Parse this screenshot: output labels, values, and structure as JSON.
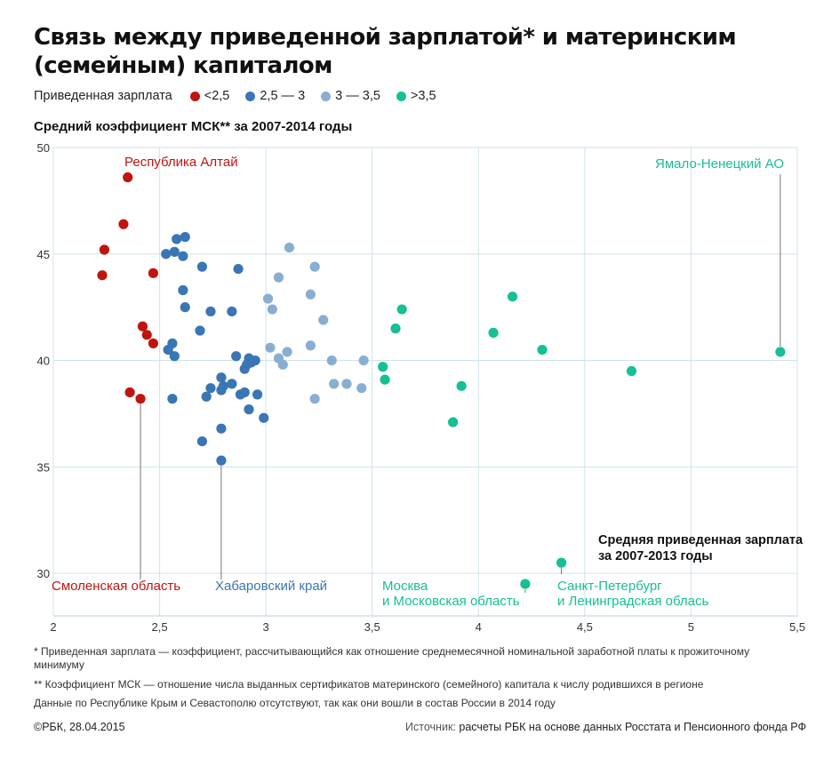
{
  "header": {
    "title_line1": "Связь между приведенной зарплатой* и материнским",
    "title_line2": "(семейным) капиталом",
    "subtitle": "Средний коэффициент МСК** за 2007-2014 годы"
  },
  "legend": {
    "title": "Приведенная зарплата",
    "items": [
      {
        "label": "<2,5",
        "color": "#c0150f"
      },
      {
        "label": "2,5 — 3",
        "color": "#3a76b4"
      },
      {
        "label": "3 — 3,5",
        "color": "#8aaed2"
      },
      {
        "label": ">3,5",
        "color": "#17bf94"
      }
    ]
  },
  "chart_data": {
    "type": "scatter",
    "xlabel": "Средняя приведенная зарплата за 2007-2013 годы",
    "xlim": [
      2,
      5.5
    ],
    "ylim": [
      28,
      50
    ],
    "x_ticks": [
      2,
      2.5,
      3,
      3.5,
      4,
      4.5,
      5,
      5.5
    ],
    "x_tick_labels": [
      "2",
      "2,5",
      "3",
      "3,5",
      "4",
      "4,5",
      "5",
      "5,5"
    ],
    "y_ticks": [
      30,
      35,
      40,
      45,
      50
    ],
    "y_tick_labels": [
      "30",
      "35",
      "40",
      "45",
      "50"
    ],
    "grid": true,
    "series": [
      {
        "name": "<2,5",
        "color": "#c0150f",
        "points": [
          [
            2.35,
            48.6
          ],
          [
            2.33,
            46.4
          ],
          [
            2.24,
            45.2
          ],
          [
            2.23,
            44.0
          ],
          [
            2.47,
            44.1
          ],
          [
            2.42,
            41.6
          ],
          [
            2.44,
            41.2
          ],
          [
            2.47,
            40.8
          ],
          [
            2.36,
            38.5
          ],
          [
            2.41,
            38.2
          ]
        ]
      },
      {
        "name": "2,5 — 3",
        "color": "#3a76b4",
        "points": [
          [
            2.62,
            45.8
          ],
          [
            2.58,
            45.7
          ],
          [
            2.53,
            45.0
          ],
          [
            2.57,
            45.1
          ],
          [
            2.61,
            44.9
          ],
          [
            2.7,
            44.4
          ],
          [
            2.87,
            44.3
          ],
          [
            2.61,
            43.3
          ],
          [
            2.62,
            42.5
          ],
          [
            2.74,
            42.3
          ],
          [
            2.84,
            42.3
          ],
          [
            2.69,
            41.4
          ],
          [
            2.56,
            40.8
          ],
          [
            2.54,
            40.5
          ],
          [
            2.57,
            40.2
          ],
          [
            2.86,
            40.2
          ],
          [
            2.92,
            40.1
          ],
          [
            2.95,
            40.0
          ],
          [
            2.93,
            39.9
          ],
          [
            2.91,
            39.8
          ],
          [
            2.9,
            39.6
          ],
          [
            2.79,
            39.2
          ],
          [
            2.8,
            38.8
          ],
          [
            2.84,
            38.9
          ],
          [
            2.79,
            38.6
          ],
          [
            2.74,
            38.7
          ],
          [
            2.72,
            38.3
          ],
          [
            2.88,
            38.4
          ],
          [
            2.9,
            38.5
          ],
          [
            2.96,
            38.4
          ],
          [
            2.56,
            38.2
          ],
          [
            2.92,
            37.7
          ],
          [
            2.99,
            37.3
          ],
          [
            2.79,
            36.8
          ],
          [
            2.7,
            36.2
          ],
          [
            2.79,
            35.3
          ]
        ]
      },
      {
        "name": "3 — 3,5",
        "color": "#8aaed2",
        "points": [
          [
            3.11,
            45.3
          ],
          [
            3.23,
            44.4
          ],
          [
            3.06,
            43.9
          ],
          [
            3.21,
            43.1
          ],
          [
            3.01,
            42.9
          ],
          [
            3.03,
            42.4
          ],
          [
            3.27,
            41.9
          ],
          [
            3.21,
            40.7
          ],
          [
            3.02,
            40.6
          ],
          [
            3.1,
            40.4
          ],
          [
            3.06,
            40.1
          ],
          [
            3.08,
            39.8
          ],
          [
            3.31,
            40.0
          ],
          [
            3.46,
            40.0
          ],
          [
            3.32,
            38.9
          ],
          [
            3.38,
            38.9
          ],
          [
            3.45,
            38.7
          ],
          [
            3.23,
            38.2
          ]
        ]
      },
      {
        "name": ">3,5",
        "color": "#17bf94",
        "points": [
          [
            3.64,
            42.4
          ],
          [
            4.16,
            43.0
          ],
          [
            3.61,
            41.5
          ],
          [
            4.07,
            41.3
          ],
          [
            4.3,
            40.5
          ],
          [
            5.42,
            40.4
          ],
          [
            3.55,
            39.7
          ],
          [
            4.72,
            39.5
          ],
          [
            3.56,
            39.1
          ],
          [
            3.92,
            38.8
          ],
          [
            3.88,
            37.1
          ],
          [
            4.39,
            30.5
          ],
          [
            4.22,
            29.5
          ]
        ]
      }
    ],
    "annotations": [
      {
        "text": "Республика Алтай",
        "color": "#c0150f"
      },
      {
        "text": "Ямало-Ненецкий АО",
        "color": "#17bf94"
      },
      {
        "text": "Смоленская область",
        "color": "#c0150f"
      },
      {
        "text": "Хабаровский край",
        "color": "#3a76b4"
      },
      {
        "text": "Москва",
        "text2": "и Московская область",
        "color": "#17bf94"
      },
      {
        "text": "Санкт-Петербург",
        "text2": "и Ленинградская облась",
        "color": "#17bf94"
      }
    ]
  },
  "footnotes": {
    "note1": "* Приведенная зарплата — коэффициент, рассчитывающийся как отношение среднемесячной номинальной заработной платы к прожиточному минимуму",
    "note2": "** Коэффициент МСК — отношение числа выданных сертификатов материнского (семейного) капитала к числу родившихся в регионе",
    "note3": "Данные по Республике Крым и Севастополю отсутствуют, так как они вошли в состав России в 2014 году",
    "credit": "©РБК, 28.04.2015",
    "source_label": "Источник:",
    "source_text": "расчеты РБК на основе данных Росстата и Пенсионного фонда РФ"
  }
}
